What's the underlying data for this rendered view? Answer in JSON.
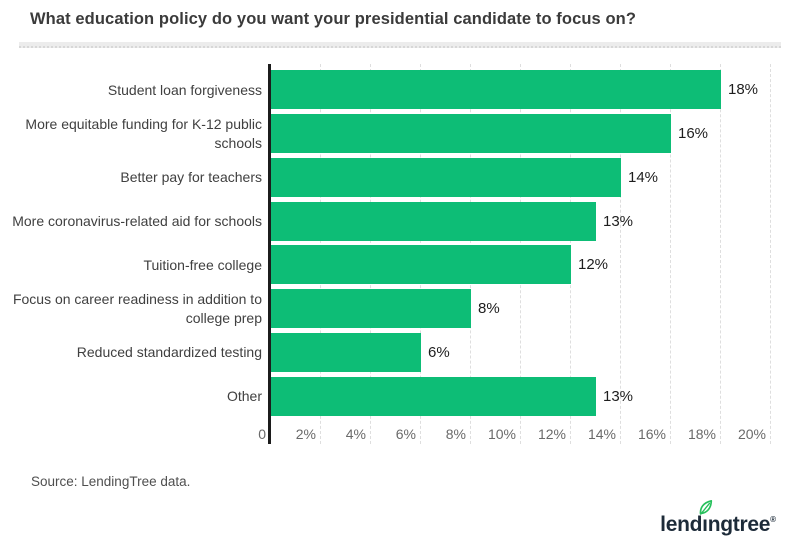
{
  "title": "What education policy do you want your presidential candidate to focus on?",
  "source": "Source: LendingTree data.",
  "logo": {
    "name": "lendingtree",
    "part1": "lend",
    "dotless_i": "ı",
    "part2": "ngtree",
    "registered": "®",
    "text_color": "#1d2b39",
    "leaf_color": "#27c05c"
  },
  "chart_data": {
    "type": "bar",
    "orientation": "horizontal",
    "title": "What education policy do you want your presidential candidate to focus on?",
    "categories": [
      "Student loan forgiveness",
      "More equitable funding for K-12 public schools",
      "Better pay for teachers",
      "More coronavirus-related aid for schools",
      "Tuition-free college",
      "Focus on career readiness in addition to college prep",
      "Reduced standardized testing",
      "Other"
    ],
    "category_lines": [
      [
        "Student loan forgiveness"
      ],
      [
        "More equitable funding for K-12 public",
        "schools"
      ],
      [
        "Better pay for teachers"
      ],
      [
        "More coronavirus-related aid for schools"
      ],
      [
        "Tuition-free college"
      ],
      [
        "Focus on career readiness in addition to",
        "college prep"
      ],
      [
        "Reduced standardized testing"
      ],
      [
        "Other"
      ]
    ],
    "values": [
      18,
      16,
      14,
      13,
      12,
      8,
      6,
      13
    ],
    "value_labels": [
      "18%",
      "16%",
      "14%",
      "13%",
      "12%",
      "8%",
      "6%",
      "13%"
    ],
    "x_ticks": [
      "0",
      "2%",
      "4%",
      "6%",
      "8%",
      "10%",
      "12%",
      "14%",
      "16%",
      "18%",
      "20%"
    ],
    "x_tick_values": [
      0,
      2,
      4,
      6,
      8,
      10,
      12,
      14,
      16,
      18,
      20
    ],
    "xlim": [
      0,
      20
    ],
    "xlabel": "",
    "ylabel": "",
    "grid": true,
    "bar_color": "#0dbd76",
    "gridline_color": "#dedede",
    "axis_color": "#1c1c1c",
    "legend": "none"
  }
}
